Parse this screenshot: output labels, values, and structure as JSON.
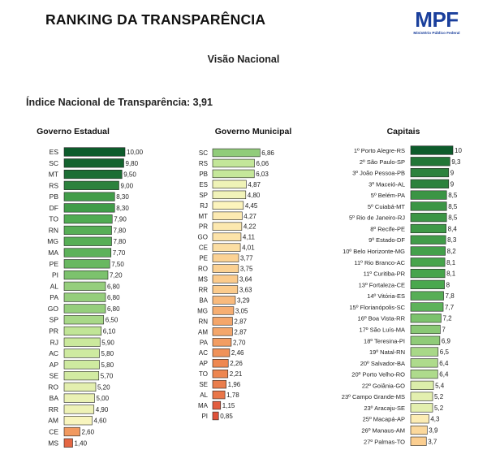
{
  "header": {
    "title": "RANKING DA TRANSPARÊNCIA",
    "logo_text": "MPF",
    "logo_subtext": "Ministério Público Federal",
    "subtitle": "Visão Nacional",
    "index_label": "Índice Nacional de Transparência: 3,91"
  },
  "chart_data": [
    {
      "type": "bar",
      "orientation": "horizontal",
      "title": "Governo Estadual",
      "xlim": [
        0,
        10
      ],
      "categories": [
        "ES",
        "SC",
        "MT",
        "RS",
        "PB",
        "DF",
        "TO",
        "RN",
        "MG",
        "MA",
        "PE",
        "PI",
        "AL",
        "PA",
        "GO",
        "SP",
        "PR",
        "RJ",
        "AC",
        "AP",
        "SE",
        "RO",
        "BA",
        "RR",
        "AM",
        "CE",
        "MS"
      ],
      "values": [
        10.0,
        9.8,
        9.5,
        9.0,
        8.3,
        8.3,
        7.9,
        7.8,
        7.8,
        7.7,
        7.5,
        7.2,
        6.8,
        6.8,
        6.8,
        6.5,
        6.1,
        5.9,
        5.8,
        5.8,
        5.7,
        5.2,
        5.0,
        4.9,
        4.6,
        2.6,
        1.4
      ],
      "value_labels": [
        "10,00",
        "9,80",
        "9,50",
        "9,00",
        "8,30",
        "8,30",
        "7,90",
        "7,80",
        "7,80",
        "7,70",
        "7,50",
        "7,20",
        "6,80",
        "6,80",
        "6,80",
        "6,50",
        "6,10",
        "5,90",
        "5,80",
        "5,80",
        "5,70",
        "5,20",
        "5,00",
        "4,90",
        "4,60",
        "2,60",
        "1,40"
      ]
    },
    {
      "type": "bar",
      "orientation": "horizontal",
      "title": "Governo Municipal",
      "xlim": [
        0,
        10
      ],
      "categories": [
        "SC",
        "RS",
        "PB",
        "ES",
        "SP",
        "RJ",
        "MT",
        "PR",
        "GO",
        "CE",
        "PE",
        "RO",
        "MS",
        "RR",
        "BA",
        "MG",
        "RN",
        "AM",
        "PA",
        "AC",
        "AP",
        "TO",
        "SE",
        "AL",
        "MA",
        "PI"
      ],
      "values": [
        6.86,
        6.06,
        6.03,
        4.87,
        4.8,
        4.45,
        4.27,
        4.22,
        4.11,
        4.01,
        3.77,
        3.75,
        3.64,
        3.63,
        3.29,
        3.05,
        2.87,
        2.87,
        2.7,
        2.46,
        2.26,
        2.21,
        1.96,
        1.78,
        1.15,
        0.85
      ],
      "value_labels": [
        "6,86",
        "6,06",
        "6,03",
        "4,87",
        "4,80",
        "4,45",
        "4,27",
        "4,22",
        "4,11",
        "4,01",
        "3,77",
        "3,75",
        "3,64",
        "3,63",
        "3,29",
        "3,05",
        "2,87",
        "2,87",
        "2,70",
        "2,46",
        "2,26",
        "2,21",
        "1,96",
        "1,78",
        "1,15",
        "0,85"
      ]
    },
    {
      "type": "bar",
      "orientation": "horizontal",
      "title": "Capitais",
      "xlim": [
        0,
        10
      ],
      "categories": [
        "1º Porto Alegre-RS",
        "2º São Paulo-SP",
        "3º João Pessoa-PB",
        "3º Maceió-AL",
        "5º Belém-PA",
        "5º Cuiabá-MT",
        "5º Rio de Janeiro-RJ",
        "8º Recife-PE",
        "9º Estado-DF",
        "10º Belo Horizonte-MG",
        "11º Rio Branco-AC",
        "11º Curitiba-PR",
        "13º Fortaleza-CE",
        "14º Vitória-ES",
        "15º Florianópolis-SC",
        "16º Boa Vista-RR",
        "17º São Luís-MA",
        "18º Teresina-PI",
        "19º Natal-RN",
        "20º Salvador-BA",
        "20º Porto Velho-RO",
        "22º Goiânia-GO",
        "23º Campo Grande-MS",
        "23º Aracaju-SE",
        "25º Macapá-AP",
        "26º Manaus-AM",
        "27º Palmas-TO"
      ],
      "values": [
        10,
        9.3,
        9,
        9,
        8.5,
        8.5,
        8.5,
        8.4,
        8.3,
        8.2,
        8.1,
        8.1,
        8,
        7.8,
        7.7,
        7.2,
        7,
        6.9,
        6.5,
        6.4,
        6.4,
        5.4,
        5.2,
        5.2,
        4.3,
        3.9,
        3.7
      ],
      "value_labels": [
        "10",
        "9,3",
        "9",
        "9",
        "8,5",
        "8,5",
        "8,5",
        "8,4",
        "8,3",
        "8,2",
        "8,1",
        "8,1",
        "8",
        "7,8",
        "7,7",
        "7,2",
        "7",
        "6,9",
        "6,5",
        "6,4",
        "6,4",
        "5,4",
        "5,2",
        "5,2",
        "4,3",
        "3,9",
        "3,7"
      ]
    }
  ],
  "colors": {
    "bar_outline": "#222222",
    "scale_dark_green": "#0d5b2b",
    "scale_mid_green": "#4aa84e",
    "scale_light_green": "#c7e89b",
    "scale_light_yellow": "#fcf6c0",
    "scale_light_orange": "#fbc98a",
    "scale_orange": "#ee8a52",
    "scale_red": "#d6302b"
  }
}
